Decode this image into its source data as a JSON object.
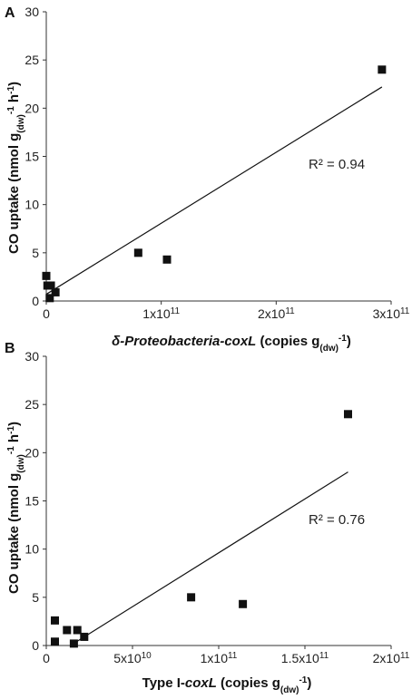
{
  "colors": {
    "marker": "#111111",
    "axis": "#333333",
    "trendline": "#111111"
  },
  "chart_data": [
    {
      "type": "scatter",
      "panel_label": "A",
      "ylabel": "CO uptake (nmol g(dw)-1 h-1)",
      "xlabel": "δ-Proteobacteria-coxL (copies g(dw)-1)",
      "xlim": [
        0,
        300000000000
      ],
      "ylim": [
        0,
        30
      ],
      "x_ticks": [
        0,
        100000000000,
        200000000000,
        300000000000
      ],
      "x_tick_labels": [
        "0",
        "1x1011",
        "2x1011",
        "3x1011"
      ],
      "y_ticks": [
        0,
        5,
        10,
        15,
        20,
        25,
        30
      ],
      "y_tick_labels": [
        "0",
        "5",
        "10",
        "15",
        "20",
        "25",
        "30"
      ],
      "series": [
        {
          "x": [
            0,
            1000000000,
            3000000000,
            4000000000,
            8000000000,
            80000000000,
            105000000000,
            292000000000
          ],
          "y": [
            2.6,
            1.6,
            0.3,
            1.6,
            0.9,
            5.0,
            4.3,
            24.0
          ]
        }
      ],
      "trendline": {
        "x": [
          0,
          292000000000
        ],
        "y": [
          0.7,
          22.2
        ]
      },
      "annotation": "R² = 0.94",
      "grid": false
    },
    {
      "type": "scatter",
      "panel_label": "B",
      "ylabel": "CO uptake (nmol g(dw)-1 h-1)",
      "xlabel": "Type I-coxL (copies g(dw)-1)",
      "xlim": [
        0,
        200000000000
      ],
      "ylim": [
        0,
        30
      ],
      "x_ticks": [
        0,
        50000000000,
        100000000000,
        150000000000,
        200000000000
      ],
      "x_tick_labels": [
        "0",
        "5x1010",
        "1x1011",
        "1.5x1011",
        "2x1011"
      ],
      "y_ticks": [
        0,
        5,
        10,
        15,
        20,
        25,
        30
      ],
      "y_tick_labels": [
        "0",
        "5",
        "10",
        "15",
        "20",
        "25",
        "30"
      ],
      "series": [
        {
          "x": [
            5000000000,
            5000000000,
            12000000000,
            16000000000,
            18000000000,
            22000000000,
            84000000000,
            114000000000,
            175000000000
          ],
          "y": [
            2.6,
            0.4,
            1.6,
            0.2,
            1.6,
            0.9,
            5.0,
            4.3,
            24.0
          ]
        }
      ],
      "trendline": {
        "x": [
          14000000000,
          175000000000
        ],
        "y": [
          0.0,
          18.0
        ]
      },
      "annotation": "R² = 0.76",
      "grid": false
    }
  ]
}
